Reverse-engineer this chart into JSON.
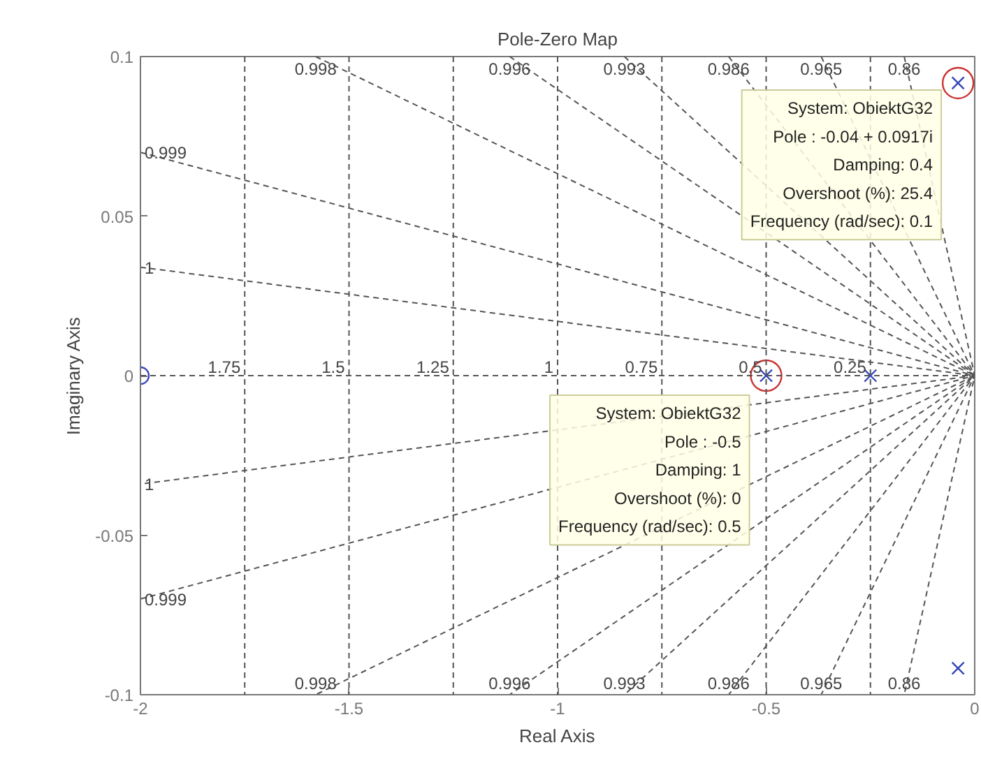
{
  "chart_data": {
    "type": "scatter",
    "title": "Pole-Zero Map",
    "xlabel": "Real Axis",
    "ylabel": "Imaginary Axis",
    "xlim": [
      -2,
      0
    ],
    "ylim": [
      -0.1,
      0.1
    ],
    "xticks": [
      -2,
      -1.5,
      -1,
      -0.5,
      0
    ],
    "yticks": [
      -0.1,
      -0.05,
      0,
      0.05,
      0.1
    ],
    "grid": false,
    "line_style": "dashed",
    "series": [
      {
        "type": "scatter",
        "marker": "cross",
        "color": "#3344bb",
        "x": [
          -0.04,
          -0.04,
          -0.5,
          -0.25
        ],
        "values": [
          0.0917,
          -0.0917,
          0,
          0
        ]
      },
      {
        "marker": "circle",
        "color": "#3344bb",
        "x": [
          -2
        ],
        "values": [
          0
        ]
      },
      {
        "type": "line",
        "name": "1",
        "color": "#555555",
        "x": [
          -2,
          0,
          -2
        ],
        "values": [
          0.034,
          0,
          -0.034
        ]
      },
      {
        "type": "line",
        "name": "0.999",
        "color": "#555555",
        "x": [
          -2,
          0,
          -2
        ],
        "values": [
          0.07,
          0,
          -0.07
        ]
      },
      {
        "type": "line",
        "name": "0.998",
        "color": "#555555",
        "x": [
          -1.58,
          0,
          -1.58
        ],
        "values": [
          0.1,
          0,
          -0.1
        ]
      },
      {
        "type": "line",
        "name": "0.996",
        "color": "#555555",
        "x": [
          -1.115,
          0,
          -1.115
        ],
        "values": [
          0.1,
          0,
          -0.1
        ]
      },
      {
        "type": "line",
        "name": "0.993",
        "color": "#555555",
        "x": [
          -0.84,
          0,
          -0.84
        ],
        "values": [
          0.1,
          0,
          -0.1
        ]
      },
      {
        "type": "line",
        "name": "0.986",
        "color": "#555555",
        "x": [
          -0.59,
          0,
          -0.59
        ],
        "values": [
          0.1,
          0,
          -0.1
        ]
      },
      {
        "type": "line",
        "name": "0.965",
        "color": "#555555",
        "x": [
          -0.368,
          0,
          -0.368
        ],
        "values": [
          0.1,
          0,
          -0.1
        ]
      },
      {
        "type": "line",
        "name": "0.86",
        "color": "#555555",
        "x": [
          -0.169,
          0,
          -0.169
        ],
        "values": [
          0.1,
          0,
          -0.1
        ]
      }
    ],
    "ref_lines": [
      {
        "axis": "x",
        "value": -1.75,
        "color": "#555555",
        "line_style": "dashed"
      },
      {
        "axis": "x",
        "value": -1.5,
        "color": "#555555",
        "line_style": "dashed"
      },
      {
        "axis": "x",
        "value": -1.25,
        "color": "#555555",
        "line_style": "dashed"
      },
      {
        "axis": "x",
        "value": -1,
        "color": "#555555",
        "line_style": "dashed"
      },
      {
        "axis": "x",
        "value": -0.75,
        "color": "#555555",
        "line_style": "dashed"
      },
      {
        "axis": "x",
        "value": -0.5,
        "color": "#555555",
        "line_style": "dashed"
      },
      {
        "axis": "x",
        "value": -0.25,
        "color": "#555555",
        "line_style": "dashed"
      },
      {
        "axis": "y",
        "value": 0,
        "color": "#555555",
        "line_style": "dashed"
      }
    ],
    "annotations": [
      {
        "text": "1.75",
        "x": -1.75,
        "y": 0
      },
      {
        "text": "1.5",
        "x": -1.5,
        "y": 0
      },
      {
        "text": "1.25",
        "x": -1.25,
        "y": 0
      },
      {
        "text": "1",
        "x": -1,
        "y": 0
      },
      {
        "text": "0.75",
        "x": -0.75,
        "y": 0
      },
      {
        "text": "0.5",
        "x": -0.5,
        "y": 0
      },
      {
        "text": "0.25",
        "x": -0.25,
        "y": 0
      },
      {
        "text": "System: ObiektG32\nPole : -0.04 + 0.0917i\nDamping: 0.4\nOvershoot (%): 25.4\nFrequency (rad/sec): 0.1",
        "x": -0.04,
        "y": 0.0917
      },
      {
        "text": "System: ObiektG32\nPole : -0.5\nDamping: 1\nOvershoot (%): 0\nFrequency (rad/sec): 0.5",
        "x": -0.5,
        "y": 0
      }
    ]
  }
}
